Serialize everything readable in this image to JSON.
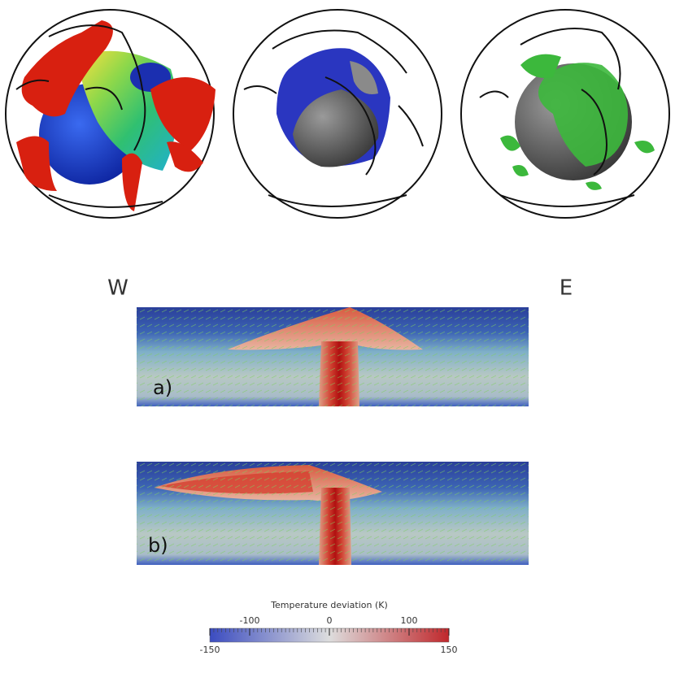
{
  "labels": {
    "west": "W",
    "east": "E"
  },
  "panels": [
    {
      "label": "a)"
    },
    {
      "label": "b)"
    }
  ],
  "colorbar": {
    "title": "Temperature deviation (K)",
    "lim": [
      -150,
      150
    ],
    "ticks": [
      -150,
      -100,
      0,
      100,
      150
    ]
  }
}
